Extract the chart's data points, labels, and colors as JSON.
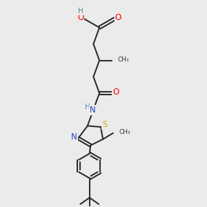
{
  "bg_color": "#ebebeb",
  "bond_color": "#2d2d2d",
  "colors": {
    "O": "#ff0000",
    "N": "#2244bb",
    "S": "#ccaa00",
    "H": "#4488aa",
    "C": "#2d2d2d"
  },
  "figsize": [
    3.0,
    3.0
  ],
  "dpi": 100
}
